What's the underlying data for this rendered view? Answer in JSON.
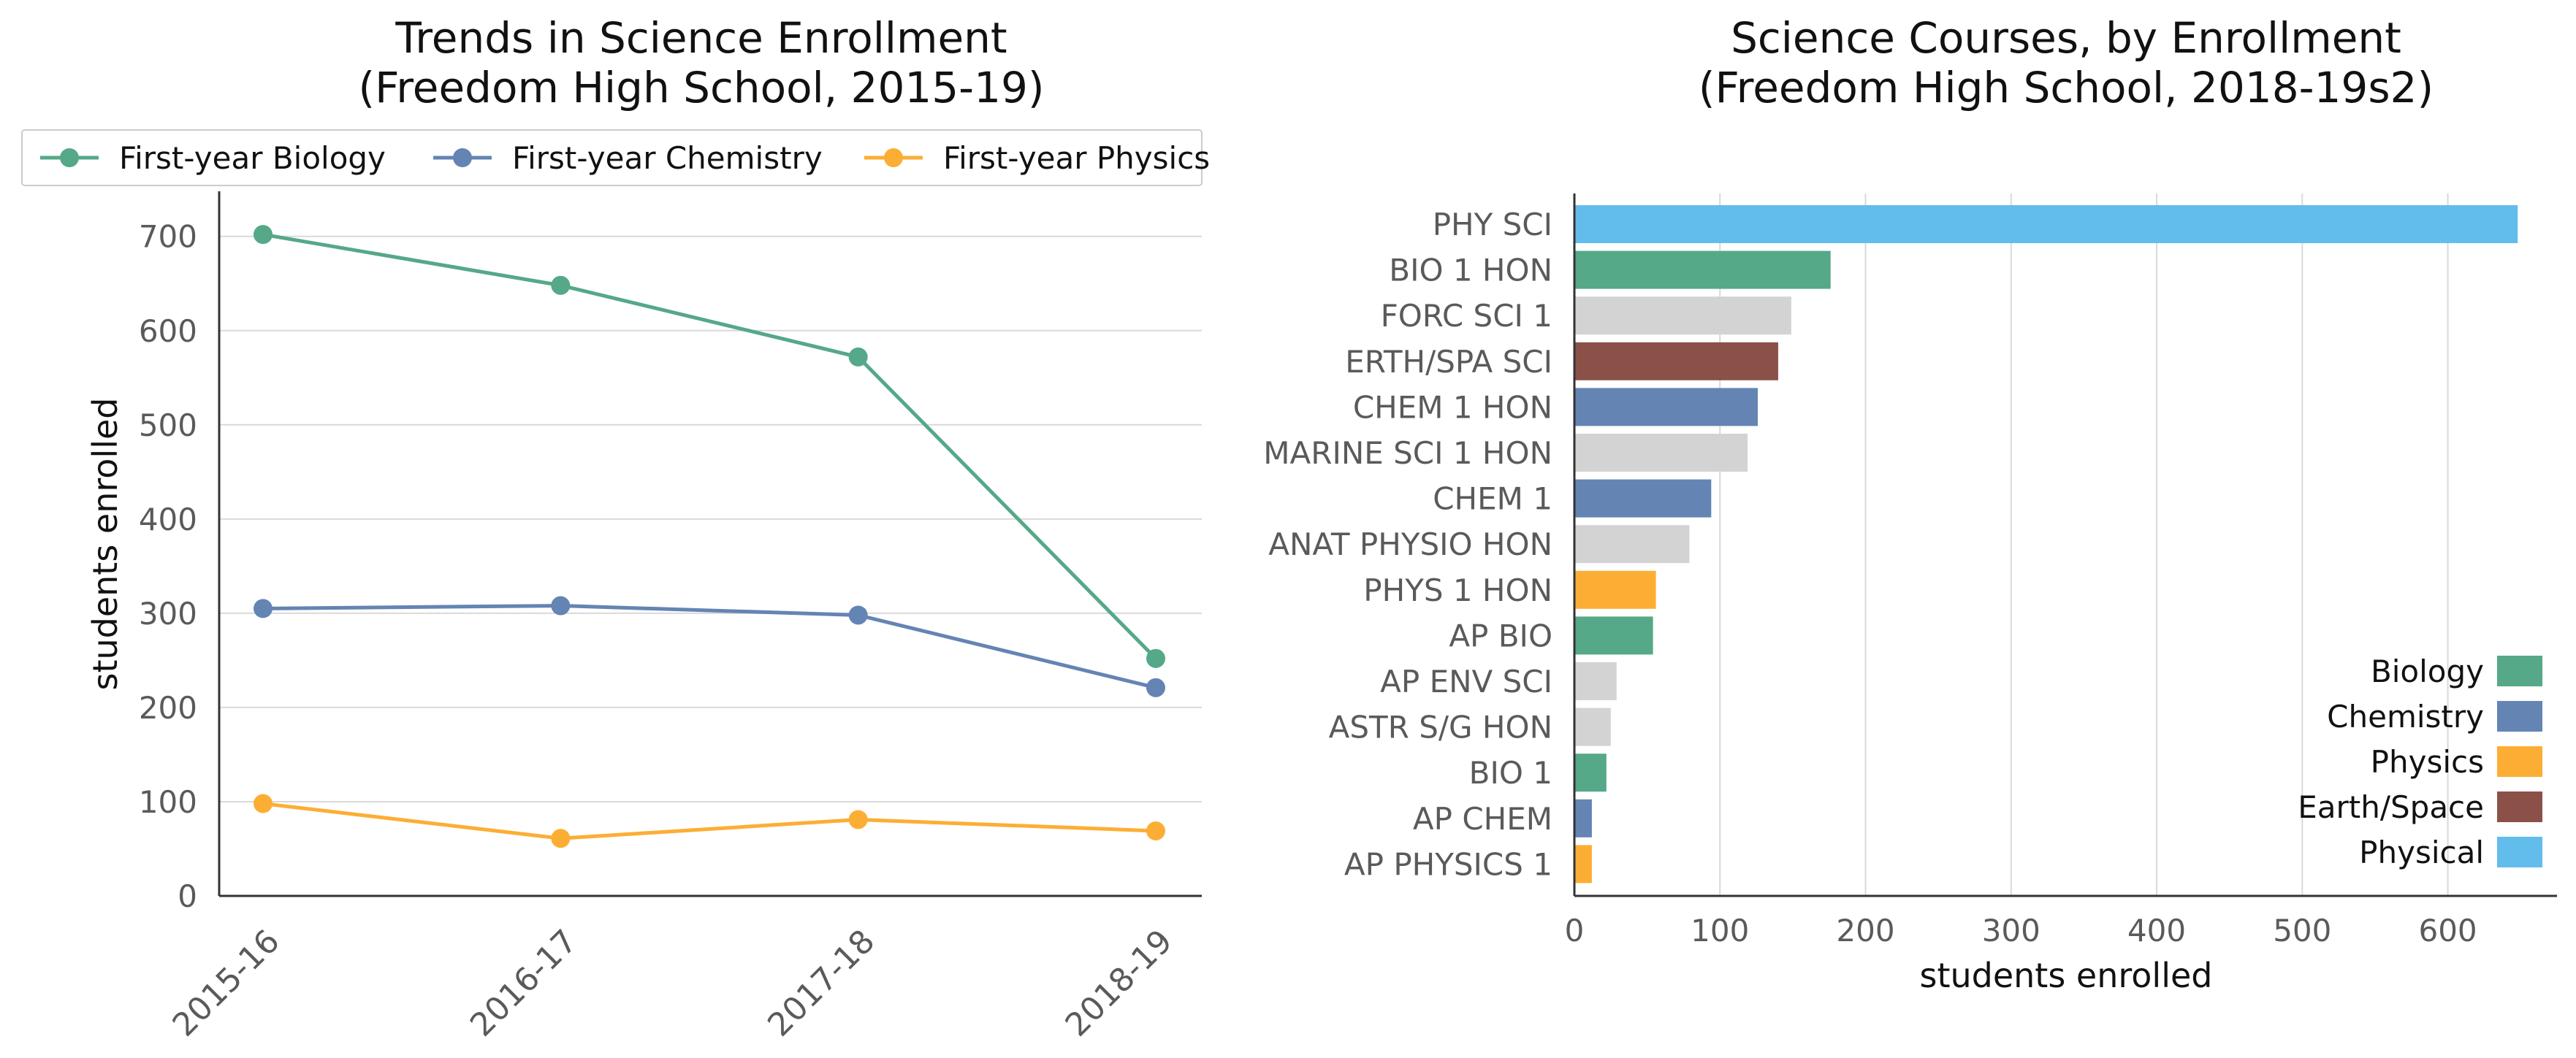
{
  "chart_data": [
    {
      "type": "line",
      "title": "Trends in Science Enrollment\n(Freedom High School, 2015-19)",
      "ylabel": "students enrolled",
      "xlabel": "",
      "categories": [
        "2015-16",
        "2016-17",
        "2017-18",
        "2018-19"
      ],
      "ylim": [
        0,
        730
      ],
      "yticks": [
        0,
        100,
        200,
        300,
        400,
        500,
        600,
        700
      ],
      "grid": "horizontal",
      "legend_position": "top",
      "series": [
        {
          "name": "First-year Biology",
          "color": "#55a888",
          "values": [
            702,
            648,
            572,
            252
          ]
        },
        {
          "name": "First-year Chemistry",
          "color": "#6484b4",
          "values": [
            305,
            308,
            298,
            221
          ]
        },
        {
          "name": "First-year Physics",
          "color": "#fcae34",
          "values": [
            98,
            61,
            81,
            69
          ]
        }
      ]
    },
    {
      "type": "bar",
      "orientation": "horizontal",
      "title": "Science Courses, by Enrollment\n(Freedom High School, 2018-19s2)",
      "xlabel": "students enrolled",
      "ylabel": "",
      "xlim": [
        0,
        675
      ],
      "xticks": [
        0,
        100,
        200,
        300,
        400,
        500,
        600
      ],
      "grid": "vertical",
      "legend_position": "lower-right",
      "categories": [
        "PHY SCI",
        "BIO 1 HON",
        "FORC SCI 1",
        "ERTH/SPA SCI",
        "CHEM 1 HON",
        "MARINE SCI 1 HON",
        "CHEM 1",
        "ANAT PHYSIO HON",
        "PHYS 1 HON",
        "AP BIO",
        "AP ENV SCI",
        "ASTR S/G HON",
        "BIO 1",
        "AP CHEM",
        "AP PHYSICS 1"
      ],
      "values": [
        648,
        176,
        149,
        140,
        126,
        119,
        94,
        79,
        56,
        54,
        29,
        25,
        22,
        12,
        12
      ],
      "bar_colors": [
        "#62bdec",
        "#55a888",
        "#d3d3d3",
        "#8b5148",
        "#6484b4",
        "#d3d3d3",
        "#6484b4",
        "#d3d3d3",
        "#fcae34",
        "#55a888",
        "#d3d3d3",
        "#d3d3d3",
        "#55a888",
        "#6484b4",
        "#fcae34"
      ],
      "legend": [
        {
          "name": "Biology",
          "color": "#55a888"
        },
        {
          "name": "Chemistry",
          "color": "#6484b4"
        },
        {
          "name": "Physics",
          "color": "#fcae34"
        },
        {
          "name": "Earth/Space",
          "color": "#8b5148"
        },
        {
          "name": "Physical",
          "color": "#62bdec"
        }
      ]
    }
  ]
}
